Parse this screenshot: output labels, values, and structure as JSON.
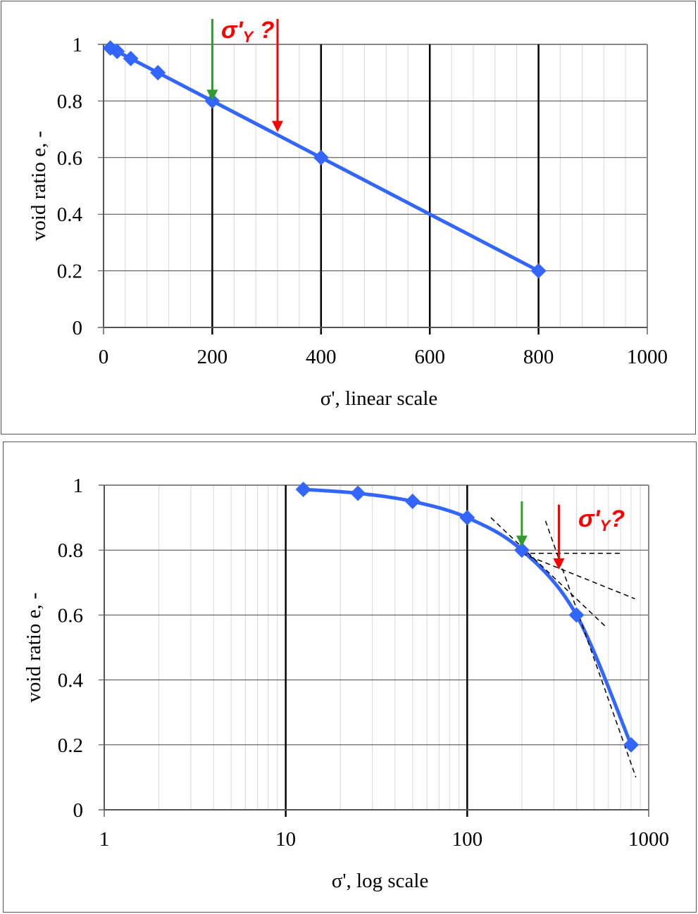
{
  "chart_data": [
    {
      "type": "line",
      "title": "",
      "xlabel": "σ', linear scale",
      "ylabel": "void ratio e, -",
      "xscale": "linear",
      "xlim": [
        0,
        1000
      ],
      "ylim": [
        0,
        1
      ],
      "x_ticks": [
        "0",
        "200",
        "400",
        "600",
        "800",
        "1000"
      ],
      "y_ticks": [
        "0",
        "0.2",
        "0.4",
        "0.6",
        "0.8",
        "1"
      ],
      "grid": true,
      "legend": null,
      "series": [
        {
          "name": "void ratio",
          "color": "#3366ff",
          "marker": "diamond",
          "x": [
            12.5,
            25,
            50,
            100,
            200,
            400,
            800
          ],
          "y": [
            0.987,
            0.975,
            0.95,
            0.9,
            0.8,
            0.6,
            0.2
          ]
        }
      ],
      "annotations": [
        {
          "type": "arrow",
          "color": "#339933",
          "x": 200,
          "from_y": 1.09,
          "to_y": 0.8,
          "label": ""
        },
        {
          "type": "arrow",
          "color": "#ff0000",
          "x": 320,
          "from_y": 1.09,
          "to_y": 0.69,
          "label": "σ'Y ?"
        }
      ]
    },
    {
      "type": "line",
      "title": "",
      "xlabel": "σ', log scale",
      "ylabel": "void ratio e, -",
      "xscale": "log",
      "xlim": [
        1,
        1000
      ],
      "ylim": [
        0,
        1
      ],
      "x_ticks": [
        "1",
        "10",
        "100",
        "1000"
      ],
      "y_ticks": [
        "0",
        "0.2",
        "0.4",
        "0.6",
        "0.8",
        "1"
      ],
      "grid": true,
      "legend": null,
      "series": [
        {
          "name": "void ratio",
          "color": "#3366ff",
          "marker": "diamond",
          "x": [
            12.5,
            25,
            50,
            100,
            200,
            400,
            800
          ],
          "y": [
            0.987,
            0.975,
            0.95,
            0.9,
            0.8,
            0.6,
            0.2
          ]
        }
      ],
      "construction_lines": [
        {
          "name": "tangent at max curvature",
          "x": [
            135,
            590
          ],
          "y": [
            0.9,
            0.56
          ]
        },
        {
          "name": "horizontal",
          "x": [
            200,
            700
          ],
          "y": [
            0.79,
            0.79
          ]
        },
        {
          "name": "bisector",
          "x": [
            200,
            840
          ],
          "y": [
            0.79,
            0.65
          ]
        },
        {
          "name": "virgin compression line",
          "x": [
            270,
            850
          ],
          "y": [
            0.89,
            0.1
          ]
        }
      ],
      "annotations": [
        {
          "type": "arrow",
          "color": "#339933",
          "x": 200,
          "from_y": 0.95,
          "to_y": 0.81,
          "label": ""
        },
        {
          "type": "arrow",
          "color": "#ff0000",
          "x": 320,
          "from_y": 0.94,
          "to_y": 0.74,
          "label": "σ'Y?"
        }
      ]
    }
  ],
  "top_chart": {
    "xlabel": "σ', linear scale",
    "ylabel": "void ratio e, -",
    "annotation": "σ'Y ?",
    "annotation_main": "σ'",
    "annotation_sub": "Y",
    "annotation_suffix": " ?"
  },
  "bottom_chart": {
    "xlabel": "σ', log scale",
    "ylabel": "void ratio e, -",
    "annotation": "σ'Y?",
    "annotation_main": "σ'",
    "annotation_sub": "Y",
    "annotation_suffix": "?"
  },
  "colors": {
    "series": "#3366ff",
    "green_arrow": "#339933",
    "red_arrow": "#ff0000",
    "major_grid": "#000000",
    "minor_grid": "#d9d9d9",
    "h_grid": "#808080"
  }
}
